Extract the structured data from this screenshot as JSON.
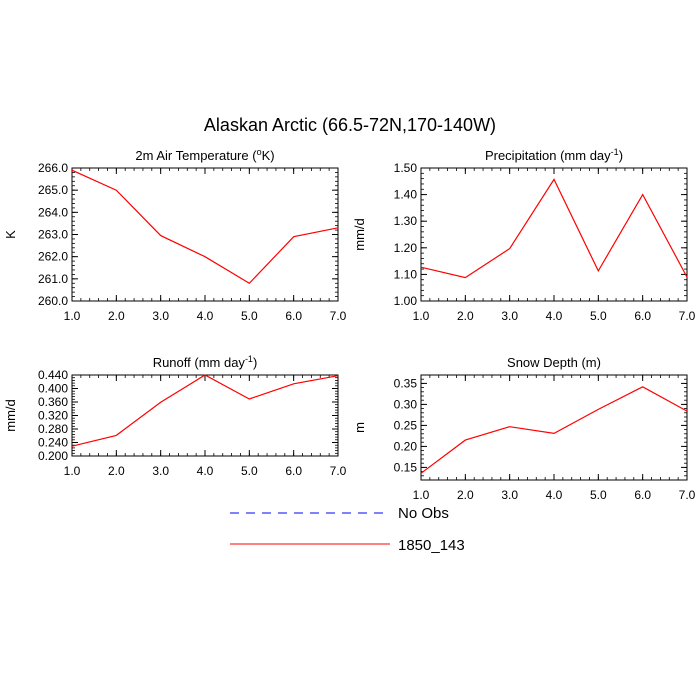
{
  "figure": {
    "title": "Alaskan Arctic (66.5-72N,170-140W)"
  },
  "legend": {
    "entries": [
      {
        "label": "No Obs",
        "color": "#0000ff",
        "dashed": true
      },
      {
        "label": "1850_143",
        "color": "#ff0000",
        "dashed": false
      }
    ]
  },
  "chart_data": [
    {
      "type": "line",
      "title_prefix": "2m Air Temperature (",
      "title_sup": "o",
      "title_suffix": "K)",
      "xlabel": "",
      "ylabel": "K",
      "xlim": [
        1,
        7
      ],
      "ylim": [
        260,
        266
      ],
      "xticks": [
        "1.0",
        "2.0",
        "3.0",
        "4.0",
        "5.0",
        "6.0",
        "7.0"
      ],
      "yticks": [
        "260.0",
        "261.0",
        "262.0",
        "263.0",
        "264.0",
        "265.0",
        "266.0"
      ],
      "x": [
        1,
        2,
        3,
        4,
        5,
        6,
        7
      ],
      "series": [
        {
          "name": "1850_143",
          "color": "#ff0000",
          "values": [
            265.9,
            265.0,
            262.95,
            262.0,
            260.8,
            262.9,
            263.3
          ]
        }
      ]
    },
    {
      "type": "line",
      "title_prefix": "Precipitation (mm day",
      "title_sup": "-1",
      "title_suffix": ")",
      "xlabel": "",
      "ylabel": "mm/d",
      "xlim": [
        1,
        7
      ],
      "ylim": [
        1.0,
        1.5
      ],
      "xticks": [
        "1.0",
        "2.0",
        "3.0",
        "4.0",
        "5.0",
        "6.0",
        "7.0"
      ],
      "yticks": [
        "1.00",
        "1.10",
        "1.20",
        "1.30",
        "1.40",
        "1.50"
      ],
      "x": [
        1,
        2,
        3,
        4,
        5,
        6,
        7
      ],
      "series": [
        {
          "name": "1850_143",
          "color": "#ff0000",
          "values": [
            1.127,
            1.088,
            1.197,
            1.457,
            1.113,
            1.4,
            1.09
          ]
        }
      ]
    },
    {
      "type": "line",
      "title_prefix": "Runoff (mm day",
      "title_sup": "-1",
      "title_suffix": ")",
      "xlabel": "",
      "ylabel": "mm/d",
      "xlim": [
        1,
        7
      ],
      "ylim": [
        0.2,
        0.44
      ],
      "xticks": [
        "1.0",
        "2.0",
        "3.0",
        "4.0",
        "5.0",
        "6.0",
        "7.0"
      ],
      "yticks": [
        "0.200",
        "0.240",
        "0.280",
        "0.320",
        "0.360",
        "0.400",
        "0.440"
      ],
      "x": [
        1,
        2,
        3,
        4,
        5,
        6,
        7
      ],
      "series": [
        {
          "name": "1850_143",
          "color": "#ff0000",
          "values": [
            0.229,
            0.261,
            0.359,
            0.44,
            0.369,
            0.414,
            0.438
          ]
        }
      ]
    },
    {
      "type": "line",
      "title_prefix": "Snow Depth (m)",
      "title_sup": "",
      "title_suffix": "",
      "xlabel": "",
      "ylabel": "m",
      "xlim": [
        1,
        7
      ],
      "ylim": [
        0.12,
        0.37
      ],
      "xticks": [
        "1.0",
        "2.0",
        "3.0",
        "4.0",
        "5.0",
        "6.0",
        "7.0"
      ],
      "yticks": [
        "0.15",
        "0.20",
        "0.25",
        "0.30",
        "0.35"
      ],
      "x": [
        1,
        2,
        3,
        4,
        5,
        6,
        7
      ],
      "series": [
        {
          "name": "1850_143",
          "color": "#ff0000",
          "values": [
            0.136,
            0.215,
            0.247,
            0.231,
            0.288,
            0.342,
            0.284
          ]
        }
      ]
    }
  ]
}
